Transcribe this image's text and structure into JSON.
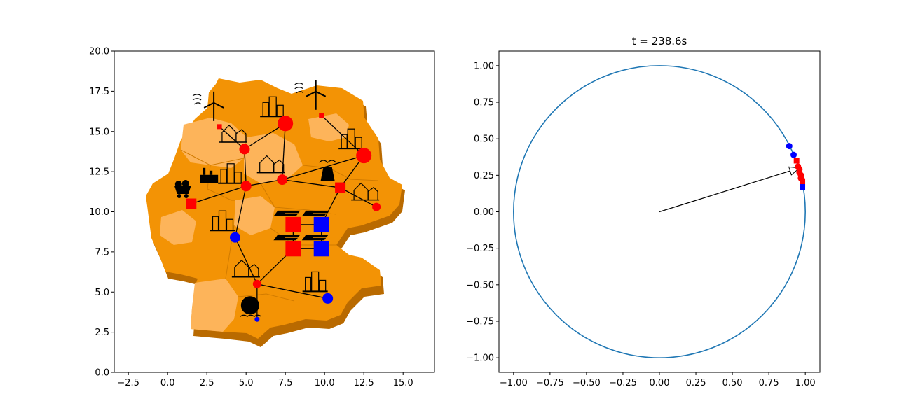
{
  "chart_data": [
    {
      "type": "scatter",
      "title": "",
      "xlabel": "",
      "ylabel": "",
      "xlim": [
        -3.4,
        17
      ],
      "ylim": [
        0,
        20
      ],
      "xticks": [
        "−2.5",
        "0.0",
        "2.5",
        "5.0",
        "7.5",
        "10.0",
        "12.5",
        "15.0"
      ],
      "yticks": [
        "0.0",
        "2.5",
        "5.0",
        "7.5",
        "10.0",
        "12.5",
        "15.0",
        "17.5",
        "20.0"
      ],
      "background": "map-of-germany",
      "edge_color": "#000000",
      "edges": [
        [
          [
            3.3,
            15.3
          ],
          [
            4.9,
            13.9
          ]
        ],
        [
          [
            4.9,
            13.9
          ],
          [
            7.5,
            15.5
          ]
        ],
        [
          [
            4.9,
            13.9
          ],
          [
            5.0,
            11.6
          ]
        ],
        [
          [
            7.5,
            15.5
          ],
          [
            7.3,
            12.0
          ]
        ],
        [
          [
            9.8,
            16.0
          ],
          [
            12.5,
            13.5
          ]
        ],
        [
          [
            12.5,
            13.5
          ],
          [
            7.3,
            12.0
          ]
        ],
        [
          [
            12.5,
            13.5
          ],
          [
            11.0,
            11.5
          ]
        ],
        [
          [
            1.5,
            10.5
          ],
          [
            5.0,
            11.6
          ]
        ],
        [
          [
            5.0,
            11.6
          ],
          [
            7.3,
            12.0
          ]
        ],
        [
          [
            7.3,
            12.0
          ],
          [
            11.0,
            11.5
          ]
        ],
        [
          [
            11.0,
            11.5
          ],
          [
            13.3,
            10.3
          ]
        ],
        [
          [
            11.0,
            11.5
          ],
          [
            9.8,
            9.2
          ]
        ],
        [
          [
            5.0,
            11.6
          ],
          [
            4.3,
            8.4
          ]
        ],
        [
          [
            4.3,
            8.4
          ],
          [
            5.7,
            5.5
          ]
        ],
        [
          [
            5.7,
            5.5
          ],
          [
            10.2,
            4.6
          ]
        ],
        [
          [
            5.7,
            5.5
          ],
          [
            5.7,
            3.3
          ]
        ],
        [
          [
            5.7,
            5.5
          ],
          [
            8.0,
            7.7
          ]
        ],
        [
          [
            8.0,
            9.2
          ],
          [
            9.8,
            9.2
          ]
        ],
        [
          [
            8.0,
            7.7
          ],
          [
            9.8,
            7.7
          ]
        ],
        [
          [
            8.0,
            9.2
          ],
          [
            8.0,
            7.7
          ]
        ],
        [
          [
            9.8,
            9.2
          ],
          [
            9.8,
            7.7
          ]
        ]
      ],
      "nodes": [
        {
          "x": 3.3,
          "y": 15.3,
          "shape": "square",
          "size": "tiny",
          "color": "#ff0000",
          "icon": "wind-turbine-icon"
        },
        {
          "x": 9.8,
          "y": 16.0,
          "shape": "square",
          "size": "tiny",
          "color": "#ff0000",
          "icon": "wind-turbine-icon"
        },
        {
          "x": 7.5,
          "y": 15.5,
          "shape": "circle",
          "size": "large",
          "color": "#ff0000",
          "icon": "city-icon"
        },
        {
          "x": 4.9,
          "y": 13.9,
          "shape": "circle",
          "size": "medium",
          "color": "#ff0000",
          "icon": "town-icon"
        },
        {
          "x": 12.5,
          "y": 13.5,
          "shape": "circle",
          "size": "large",
          "color": "#ff0000",
          "icon": "city-icon"
        },
        {
          "x": 7.3,
          "y": 12.0,
          "shape": "circle",
          "size": "medium",
          "color": "#ff0000",
          "icon": "town-icon"
        },
        {
          "x": 5.0,
          "y": 11.6,
          "shape": "circle",
          "size": "medium",
          "color": "#ff0000",
          "icon": "industrial-city-icon"
        },
        {
          "x": 11.0,
          "y": 11.5,
          "shape": "square",
          "size": "medium",
          "color": "#ff0000",
          "icon": "power-plant-icon"
        },
        {
          "x": 1.5,
          "y": 10.5,
          "shape": "square",
          "size": "medium",
          "color": "#ff0000",
          "icon": "coal-cart-icon"
        },
        {
          "x": 13.3,
          "y": 10.3,
          "shape": "circle",
          "size": "small",
          "color": "#ff0000",
          "icon": "town-icon"
        },
        {
          "x": 8.0,
          "y": 9.2,
          "shape": "square",
          "size": "large",
          "color": "#ff0000",
          "icon": "solar-panel-icon"
        },
        {
          "x": 9.8,
          "y": 9.2,
          "shape": "square",
          "size": "large",
          "color": "#0000ff",
          "icon": "solar-panel-icon"
        },
        {
          "x": 8.0,
          "y": 7.7,
          "shape": "square",
          "size": "large",
          "color": "#ff0000",
          "icon": "solar-panel-icon"
        },
        {
          "x": 9.8,
          "y": 7.7,
          "shape": "square",
          "size": "large",
          "color": "#0000ff",
          "icon": "solar-panel-icon"
        },
        {
          "x": 4.3,
          "y": 8.4,
          "shape": "circle",
          "size": "medium",
          "color": "#0000ff",
          "icon": "city-icon"
        },
        {
          "x": 5.7,
          "y": 5.5,
          "shape": "circle",
          "size": "small",
          "color": "#ff0000",
          "icon": "town-icon"
        },
        {
          "x": 10.2,
          "y": 4.6,
          "shape": "circle",
          "size": "medium",
          "color": "#0000ff",
          "icon": "city-icon"
        },
        {
          "x": 5.7,
          "y": 3.3,
          "shape": "circle",
          "size": "tiny",
          "color": "#0000ff",
          "icon": "hydro-plant-icon"
        }
      ]
    },
    {
      "type": "scatter",
      "title": "t = 238.6s",
      "xlabel": "",
      "ylabel": "",
      "xlim": [
        -1.1,
        1.1
      ],
      "ylim": [
        -1.1,
        1.1
      ],
      "xticks": [
        "−1.00",
        "−0.75",
        "−0.50",
        "−0.25",
        "0.00",
        "0.25",
        "0.50",
        "0.75",
        "1.00"
      ],
      "yticks": [
        "−1.00",
        "−0.75",
        "−0.50",
        "−0.25",
        "0.00",
        "0.25",
        "0.50",
        "0.75",
        "1.00"
      ],
      "circle": {
        "radius": 1.0,
        "color": "#1f77b4"
      },
      "arrow": {
        "from": [
          0,
          0
        ],
        "to": [
          0.96,
          0.3
        ],
        "color": "#000000"
      },
      "points": [
        {
          "x": 0.89,
          "y": 0.45,
          "color": "#0000ff",
          "shape": "circle"
        },
        {
          "x": 0.92,
          "y": 0.39,
          "color": "#0000ff",
          "shape": "circle"
        },
        {
          "x": 0.94,
          "y": 0.35,
          "color": "#ff0000",
          "shape": "square"
        },
        {
          "x": 0.95,
          "y": 0.31,
          "color": "#ff0000",
          "shape": "circle"
        },
        {
          "x": 0.96,
          "y": 0.29,
          "color": "#ff0000",
          "shape": "circle"
        },
        {
          "x": 0.96,
          "y": 0.27,
          "color": "#ff0000",
          "shape": "circle"
        },
        {
          "x": 0.97,
          "y": 0.25,
          "color": "#ff0000",
          "shape": "circle"
        },
        {
          "x": 0.97,
          "y": 0.23,
          "color": "#ff0000",
          "shape": "circle"
        },
        {
          "x": 0.98,
          "y": 0.21,
          "color": "#ff0000",
          "shape": "square"
        },
        {
          "x": 0.98,
          "y": 0.19,
          "color": "#ff0000",
          "shape": "square"
        },
        {
          "x": 0.98,
          "y": 0.17,
          "color": "#0000ff",
          "shape": "square"
        }
      ]
    }
  ]
}
